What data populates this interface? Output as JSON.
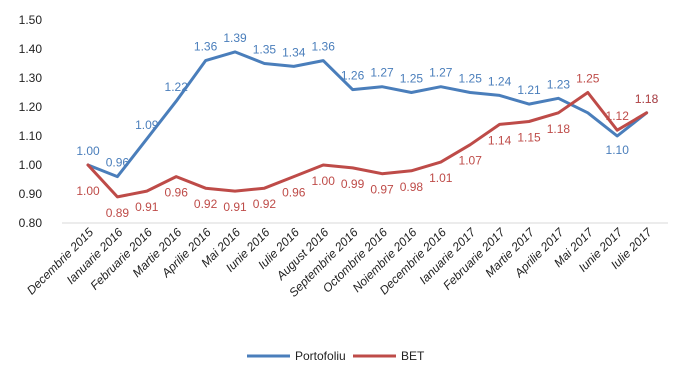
{
  "chart_data": {
    "type": "line",
    "categories": [
      "Decembrie 2015",
      "Ianuarie 2016",
      "Februarie 2016",
      "Martie 2016",
      "Aprilie 2016",
      "Mai 2016",
      "Iunie 2016",
      "Iulie 2016",
      "August 2016",
      "Septembrie 2016",
      "Octombrie 2016",
      "Noiembrie 2016",
      "Decembrie 2016",
      "Ianuarie 2017",
      "Februarie 2017",
      "Martie 2017",
      "Aprilie 2017",
      "Mai 2017",
      "Iunie 2017",
      "Iulie 2017"
    ],
    "series": [
      {
        "name": "Portofoliu",
        "color": "#4A7EBB",
        "values": [
          1.0,
          0.96,
          1.09,
          1.22,
          1.36,
          1.39,
          1.35,
          1.34,
          1.36,
          1.26,
          1.27,
          1.25,
          1.27,
          1.25,
          1.24,
          1.21,
          1.23,
          null,
          1.1,
          1.18
        ],
        "points": [
          1.0,
          0.96,
          1.09,
          1.22,
          1.36,
          1.39,
          1.35,
          1.34,
          1.36,
          1.26,
          1.27,
          1.25,
          1.27,
          1.25,
          1.24,
          1.21,
          1.23,
          1.18,
          1.1,
          1.18
        ]
      },
      {
        "name": "BET",
        "color": "#BE4B48",
        "values": [
          1.0,
          0.89,
          0.91,
          0.96,
          0.92,
          0.91,
          0.92,
          0.96,
          1.0,
          0.99,
          0.97,
          0.98,
          1.01,
          1.07,
          1.14,
          1.15,
          1.18,
          1.25,
          1.12,
          1.18
        ],
        "points": [
          1.0,
          0.89,
          0.91,
          0.96,
          0.92,
          0.91,
          0.92,
          0.96,
          1.0,
          0.99,
          0.97,
          0.98,
          1.01,
          1.07,
          1.14,
          1.15,
          1.18,
          1.25,
          1.12,
          1.18
        ]
      }
    ],
    "y_ticks": [
      "1.50",
      "1.40",
      "1.30",
      "1.20",
      "1.10",
      "1.00",
      "0.90",
      "0.80"
    ],
    "ylim": [
      0.8,
      1.5
    ],
    "grid": false,
    "legend_position": "bottom"
  }
}
